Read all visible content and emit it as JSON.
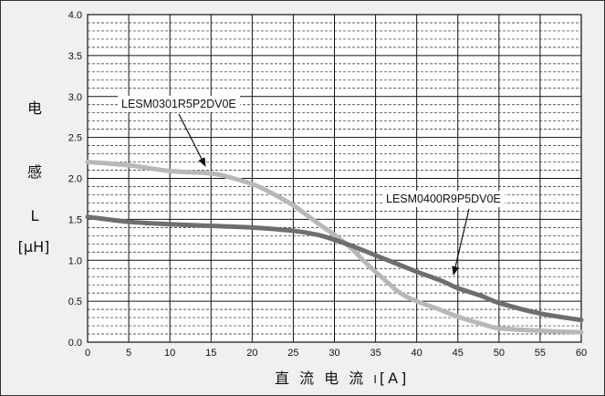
{
  "chart_data": {
    "type": "line",
    "xlabel_parts": [
      "直 流 电 流 ",
      "I",
      "[A]"
    ],
    "ylabel_parts": [
      "电",
      "感",
      "L",
      "[μH]"
    ],
    "xlim": [
      0,
      60
    ],
    "ylim": [
      0,
      4.0
    ],
    "x_ticks": [
      "0",
      "5",
      "10",
      "15",
      "20",
      "25",
      "30",
      "35",
      "40",
      "45",
      "50",
      "55",
      "60"
    ],
    "y_ticks": [
      "0.0",
      "0.5",
      "1.0",
      "1.5",
      "2.0",
      "2.5",
      "3.0",
      "3.5",
      "4.0"
    ],
    "grid": true,
    "series": [
      {
        "name": "LESM0301R5P2DV0E",
        "color": "#b8b8b8",
        "x": [
          0,
          5,
          10,
          15,
          17,
          20,
          22,
          25,
          28,
          30,
          32,
          34,
          36,
          38,
          40,
          43,
          45,
          48,
          50,
          55,
          60
        ],
        "y": [
          2.2,
          2.16,
          2.09,
          2.06,
          2.02,
          1.93,
          1.84,
          1.67,
          1.45,
          1.31,
          1.15,
          0.95,
          0.77,
          0.6,
          0.5,
          0.39,
          0.31,
          0.22,
          0.17,
          0.14,
          0.12
        ]
      },
      {
        "name": "LESM0400R9P5DV0E",
        "color": "#6e6e6e",
        "x": [
          0,
          5,
          10,
          15,
          20,
          25,
          28,
          30,
          32,
          35,
          38,
          40,
          43,
          45,
          48,
          50,
          55,
          60
        ],
        "y": [
          1.53,
          1.47,
          1.44,
          1.42,
          1.4,
          1.36,
          1.31,
          1.25,
          1.18,
          1.06,
          0.94,
          0.86,
          0.75,
          0.66,
          0.56,
          0.48,
          0.35,
          0.27
        ]
      }
    ],
    "annotations": [
      {
        "text": "LESM0301R5P2DV0E",
        "series": 0
      },
      {
        "text": "LESM0400R9P5DV0E",
        "series": 1
      }
    ]
  }
}
